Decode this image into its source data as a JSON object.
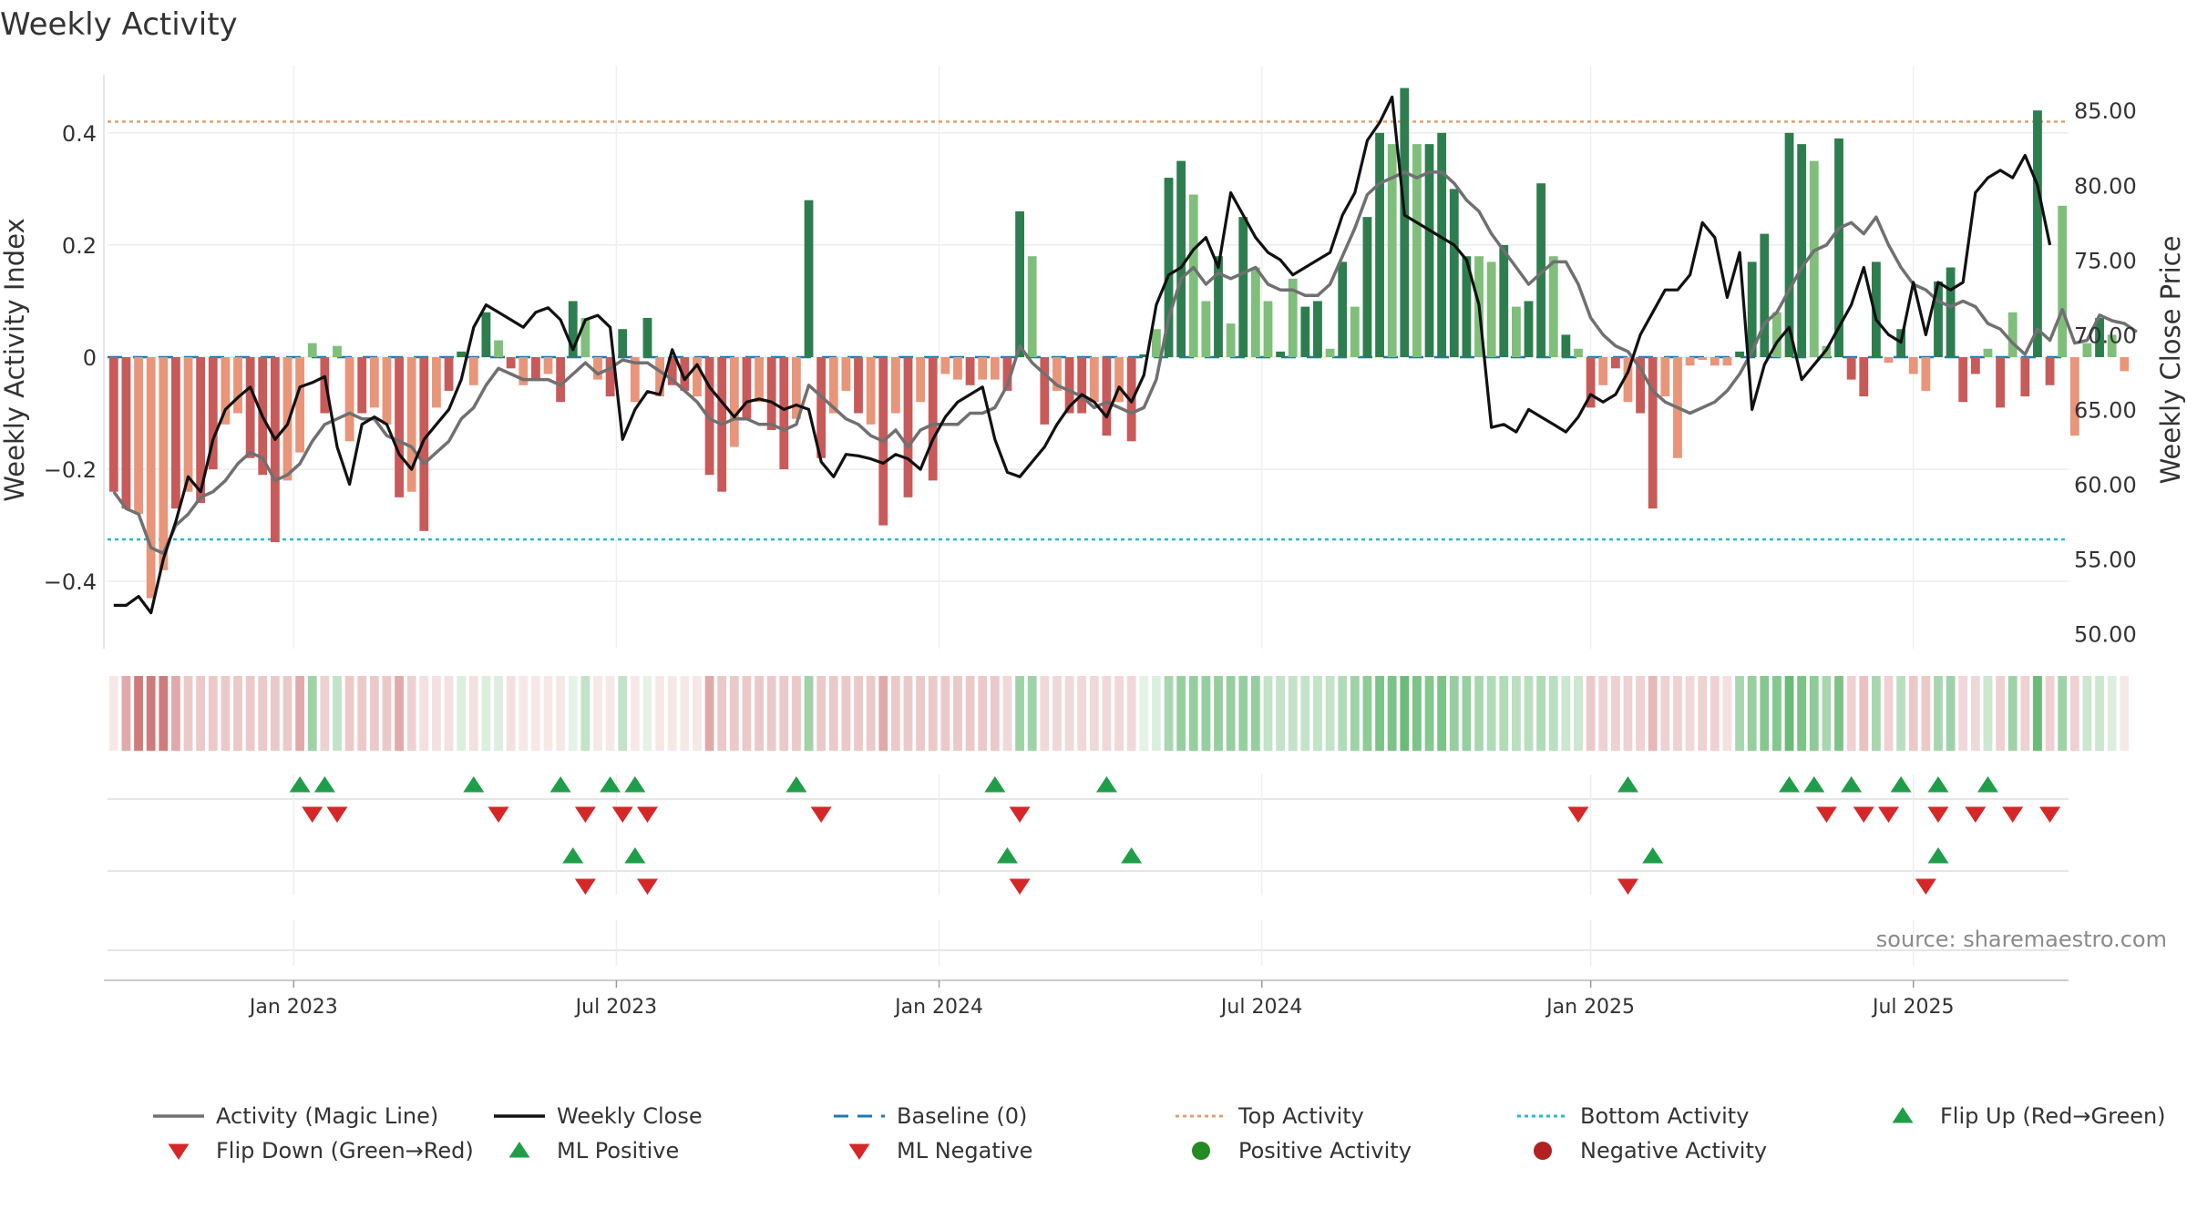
{
  "chart_data": {
    "type": "bar",
    "title": "Weekly Activity",
    "ylabel_left": "Weekly Activity Index",
    "ylabel_right": "Weekly Close Price",
    "source_text": "source: sharemaestro.com",
    "ylim_left": [
      -0.52,
      0.52
    ],
    "ylim_right": [
      49,
      88
    ],
    "yticks_left": [
      {
        "value": 0.4,
        "label": "0.4"
      },
      {
        "value": 0.2,
        "label": "0.2"
      },
      {
        "value": 0,
        "label": "0"
      },
      {
        "value": -0.2,
        "label": "−0.2"
      },
      {
        "value": -0.4,
        "label": "−0.4"
      }
    ],
    "yticks_right": [
      {
        "value": 85,
        "label": "85.00"
      },
      {
        "value": 80,
        "label": "80.00"
      },
      {
        "value": 75,
        "label": "75.00"
      },
      {
        "value": 70,
        "label": "70.00"
      },
      {
        "value": 65,
        "label": "65.00"
      },
      {
        "value": 60,
        "label": "60.00"
      },
      {
        "value": 55,
        "label": "55.00"
      },
      {
        "value": 50,
        "label": "50.00"
      }
    ],
    "x_week_range": [
      0,
      157
    ],
    "xticks": [
      {
        "week": 14.5,
        "label": "Jan 2023"
      },
      {
        "week": 40.5,
        "label": "Jul 2023"
      },
      {
        "week": 66.5,
        "label": "Jan 2024"
      },
      {
        "week": 92.5,
        "label": "Jul 2024"
      },
      {
        "week": 119,
        "label": "Jan 2025"
      },
      {
        "week": 145,
        "label": "Jul 2025"
      }
    ],
    "top_activity": 0.42,
    "bottom_activity": -0.325,
    "baseline": 0,
    "colors": {
      "positive_strong": "#2e7d4f",
      "positive_light": "#7fbf7b",
      "negative_strong": "#c85a5a",
      "negative_light": "#e8957a",
      "magic_line": "#707070",
      "weekly_close": "#111111",
      "baseline": "#1f77b4",
      "top_activity": "#e0a070",
      "bottom_activity": "#22bbcc",
      "marker_up": "#1f9e49",
      "marker_down": "#d62728",
      "positive_dot": "#238b23",
      "negative_dot": "#b22222"
    },
    "series": [
      {
        "name": "Activity",
        "values": [
          -0.24,
          -0.27,
          -0.28,
          -0.43,
          -0.38,
          -0.27,
          -0.24,
          -0.26,
          -0.2,
          -0.12,
          -0.1,
          -0.18,
          -0.21,
          -0.33,
          -0.22,
          -0.17,
          0.025,
          -0.1,
          0.02,
          -0.15,
          -0.1,
          -0.09,
          -0.12,
          -0.25,
          -0.24,
          -0.31,
          -0.09,
          -0.06,
          0.01,
          -0.05,
          0.08,
          0.03,
          -0.02,
          -0.05,
          -0.04,
          -0.03,
          -0.08,
          0.1,
          0.07,
          -0.04,
          -0.07,
          0.05,
          -0.08,
          0.07,
          -0.07,
          -0.05,
          -0.06,
          -0.07,
          -0.21,
          -0.24,
          -0.16,
          -0.11,
          -0.08,
          -0.13,
          -0.2,
          -0.11,
          0.28,
          -0.18,
          -0.1,
          -0.06,
          -0.1,
          -0.12,
          -0.3,
          -0.1,
          -0.25,
          -0.08,
          -0.22,
          -0.03,
          -0.04,
          -0.05,
          -0.04,
          -0.04,
          -0.06,
          0.26,
          0.18,
          -0.12,
          -0.06,
          -0.1,
          -0.1,
          -0.08,
          -0.14,
          -0.08,
          -0.15,
          0.005,
          0.05,
          0.32,
          0.35,
          0.29,
          0.1,
          0.18,
          0.06,
          0.25,
          0.16,
          0.1,
          0.01,
          0.14,
          0.09,
          0.1,
          0.015,
          0.17,
          0.09,
          0.25,
          0.4,
          0.38,
          0.48,
          0.38,
          0.38,
          0.4,
          0.3,
          0.18,
          0.18,
          0.17,
          0.2,
          0.09,
          0.1,
          0.31,
          0.18,
          0.04,
          0.015,
          -0.09,
          -0.05,
          -0.02,
          -0.08,
          -0.1,
          -0.27,
          -0.07,
          -0.18,
          -0.015,
          -0.005,
          -0.015,
          -0.015,
          0.01,
          0.17,
          0.22,
          0.08,
          0.4,
          0.38,
          0.35,
          0.02,
          0.39,
          -0.04,
          -0.07,
          0.17,
          -0.01,
          0.05,
          -0.03,
          -0.06,
          0.135,
          0.16,
          -0.08,
          -0.03,
          0.015,
          -0.09,
          0.08,
          -0.07,
          0.44,
          -0.05,
          0.27,
          -0.14,
          0.025,
          0.07,
          0.04,
          -0.025
        ],
        "shade": [
          1,
          1,
          0,
          0,
          0,
          1,
          0,
          1,
          1,
          0,
          0,
          1,
          1,
          1,
          0,
          0,
          0,
          1,
          0,
          0,
          1,
          0,
          0,
          1,
          0,
          1,
          0,
          1,
          1,
          0,
          1,
          0,
          1,
          0,
          1,
          0,
          1,
          1,
          0,
          0,
          1,
          1,
          0,
          1,
          0,
          1,
          1,
          0,
          1,
          1,
          0,
          1,
          0,
          1,
          1,
          0,
          1,
          1,
          0,
          0,
          1,
          0,
          1,
          0,
          1,
          0,
          1,
          0,
          0,
          1,
          0,
          0,
          1,
          1,
          0,
          1,
          0,
          1,
          1,
          0,
          1,
          0,
          1,
          1,
          0,
          1,
          1,
          0,
          0,
          1,
          0,
          1,
          0,
          0,
          1,
          0,
          1,
          1,
          0,
          1,
          0,
          1,
          1,
          0,
          1,
          0,
          1,
          1,
          1,
          1,
          0,
          0,
          1,
          0,
          1,
          1,
          0,
          1,
          0,
          1,
          0,
          1,
          0,
          1,
          1,
          0,
          0,
          0,
          0,
          0,
          0,
          1,
          1,
          1,
          0,
          1,
          1,
          0,
          0,
          1,
          1,
          1,
          1,
          0,
          1,
          0,
          0,
          1,
          1,
          1,
          1,
          0,
          1,
          0,
          1,
          1,
          1,
          0,
          0,
          0,
          1
        ]
      },
      {
        "name": "Activity (Magic Line)",
        "values": [
          -0.24,
          -0.27,
          -0.28,
          -0.34,
          -0.35,
          -0.3,
          -0.28,
          -0.25,
          -0.24,
          -0.22,
          -0.19,
          -0.17,
          -0.18,
          -0.22,
          -0.21,
          -0.19,
          -0.15,
          -0.12,
          -0.11,
          -0.1,
          -0.11,
          -0.11,
          -0.14,
          -0.15,
          -0.16,
          -0.19,
          -0.17,
          -0.15,
          -0.11,
          -0.09,
          -0.05,
          -0.02,
          -0.03,
          -0.04,
          -0.04,
          -0.04,
          -0.05,
          -0.03,
          -0.01,
          -0.03,
          -0.02,
          -0.005,
          -0.01,
          -0.01,
          -0.025,
          -0.04,
          -0.06,
          -0.08,
          -0.11,
          -0.12,
          -0.11,
          -0.11,
          -0.12,
          -0.12,
          -0.13,
          -0.12,
          -0.05,
          -0.07,
          -0.09,
          -0.11,
          -0.12,
          -0.14,
          -0.15,
          -0.13,
          -0.16,
          -0.13,
          -0.12,
          -0.12,
          -0.12,
          -0.1,
          -0.1,
          -0.09,
          -0.05,
          0.02,
          -0.01,
          -0.03,
          -0.05,
          -0.06,
          -0.07,
          -0.09,
          -0.08,
          -0.09,
          -0.1,
          -0.09,
          -0.04,
          0.07,
          0.14,
          0.16,
          0.13,
          0.15,
          0.14,
          0.15,
          0.16,
          0.13,
          0.12,
          0.12,
          0.11,
          0.11,
          0.13,
          0.18,
          0.23,
          0.29,
          0.31,
          0.32,
          0.33,
          0.32,
          0.33,
          0.33,
          0.31,
          0.28,
          0.26,
          0.22,
          0.19,
          0.16,
          0.13,
          0.15,
          0.17,
          0.17,
          0.13,
          0.07,
          0.04,
          0.02,
          0.01,
          -0.02,
          -0.06,
          -0.08,
          -0.09,
          -0.1,
          -0.09,
          -0.08,
          -0.06,
          -0.03,
          0.01,
          0.06,
          0.08,
          0.12,
          0.16,
          0.19,
          0.2,
          0.23,
          0.24,
          0.22,
          0.25,
          0.2,
          0.16,
          0.13,
          0.12,
          0.1,
          0.09,
          0.1,
          0.09,
          0.06,
          0.05,
          0.025,
          0.005,
          0.05,
          0.03,
          0.085,
          0.025,
          0.03,
          0.075,
          0.065,
          0.06,
          0.045
        ]
      },
      {
        "name": "Weekly Close",
        "values": [
          51.9,
          51.9,
          52.5,
          51.4,
          55.0,
          57.5,
          60.5,
          59.5,
          63.0,
          65.0,
          65.8,
          66.5,
          64.5,
          63.0,
          64.0,
          66.5,
          66.8,
          67.2,
          62.5,
          60.0,
          64.0,
          64.5,
          64.0,
          62.0,
          61.0,
          63.0,
          64.0,
          65.0,
          67.0,
          70.5,
          72.0,
          71.5,
          71.0,
          70.5,
          71.5,
          71.8,
          71.0,
          69.0,
          71.0,
          71.3,
          70.5,
          63.0,
          65.0,
          66.2,
          66.0,
          69.0,
          67.0,
          68.0,
          66.5,
          65.5,
          64.5,
          65.5,
          65.7,
          65.5,
          65.0,
          65.3,
          65.0,
          61.5,
          60.5,
          62.0,
          61.9,
          61.7,
          61.4,
          62.0,
          61.7,
          61.0,
          63.0,
          64.5,
          65.5,
          66.0,
          66.5,
          63.0,
          60.8,
          60.5,
          61.5,
          62.5,
          64.0,
          65.2,
          66.0,
          65.5,
          64.5,
          66.5,
          65.5,
          67.3,
          72.0,
          74.0,
          74.5,
          75.7,
          76.5,
          74.5,
          79.5,
          78.0,
          76.5,
          75.5,
          75.0,
          74.0,
          74.5,
          75.0,
          75.5,
          78.0,
          79.5,
          83.0,
          84.2,
          85.9,
          78.0,
          77.5,
          77.0,
          76.5,
          76.0,
          75.0,
          72.0,
          63.8,
          64.0,
          63.5,
          65.0,
          64.5,
          64.0,
          63.5,
          64.5,
          66.0,
          65.5,
          66.0,
          67.5,
          70.0,
          71.5,
          73.0,
          73.0,
          74.0,
          77.5,
          76.5,
          72.5,
          75.5,
          65.0,
          68.0,
          69.5,
          70.5,
          67.0,
          68.0,
          69.0,
          70.5,
          72.0,
          74.5,
          71.0,
          70.0,
          69.5,
          73.5,
          70.0,
          73.5,
          73.0,
          73.5,
          79.5,
          80.5,
          81.0,
          80.5,
          82.0,
          80.0,
          76.0
        ]
      }
    ],
    "bottom_panel": {
      "strip_intensity": [
        0.15,
        0.55,
        0.85,
        0.85,
        0.85,
        0.55,
        0.35,
        0.35,
        0.35,
        0.35,
        0.35,
        0.35,
        0.35,
        0.35,
        0.35,
        0.55,
        0.55,
        0.3,
        0.35,
        0.35,
        0.35,
        0.35,
        0.35,
        0.55,
        0.3,
        0.2,
        0.2,
        0.2,
        0.2,
        0.2,
        0.2,
        0.2,
        0.2,
        0.15,
        0.15,
        0.15,
        0.15,
        0.15,
        0.35,
        0.15,
        0.15,
        0.35,
        0.15,
        0.15,
        0.15,
        0.15,
        0.15,
        0.15,
        0.55,
        0.35,
        0.35,
        0.35,
        0.35,
        0.35,
        0.35,
        0.35,
        0.55,
        0.35,
        0.35,
        0.35,
        0.35,
        0.35,
        0.55,
        0.35,
        0.35,
        0.35,
        0.35,
        0.35,
        0.35,
        0.35,
        0.35,
        0.35,
        0.25,
        0.55,
        0.55,
        0.25,
        0.25,
        0.25,
        0.25,
        0.25,
        0.25,
        0.25,
        0.25,
        0.15,
        0.2,
        0.5,
        0.6,
        0.6,
        0.6,
        0.6,
        0.6,
        0.6,
        0.6,
        0.35,
        0.35,
        0.35,
        0.35,
        0.35,
        0.35,
        0.45,
        0.55,
        0.65,
        0.75,
        0.75,
        0.85,
        0.75,
        0.7,
        0.75,
        0.6,
        0.6,
        0.5,
        0.45,
        0.45,
        0.4,
        0.4,
        0.45,
        0.4,
        0.3,
        0.3,
        0.35,
        0.3,
        0.3,
        0.3,
        0.3,
        0.45,
        0.3,
        0.3,
        0.25,
        0.3,
        0.3,
        0.2,
        0.5,
        0.6,
        0.7,
        0.7,
        0.85,
        0.75,
        0.65,
        0.5,
        0.75,
        0.3,
        0.4,
        0.5,
        0.3,
        0.4,
        0.35,
        0.35,
        0.5,
        0.55,
        0.25,
        0.25,
        0.3,
        0.3,
        0.55,
        0.3,
        0.85,
        0.3,
        0.55,
        0.3,
        0.3,
        0.3,
        0.2,
        0.15
      ],
      "flip_up_weeks": [
        15,
        17,
        29,
        36,
        40,
        42,
        55,
        71,
        80,
        122,
        135,
        137,
        140,
        144,
        147,
        151
      ],
      "flip_down_weeks": [
        16,
        18,
        31,
        38,
        41,
        43,
        57,
        73,
        118,
        138,
        141,
        143,
        147,
        150,
        153,
        156
      ],
      "ml_positive_weeks": [
        37,
        42,
        72,
        82,
        124,
        147
      ],
      "ml_negative_weeks": [
        38,
        43,
        73,
        122,
        146
      ]
    },
    "legend": [
      {
        "label": "Activity (Magic Line)",
        "kind": "line",
        "color": "#707070"
      },
      {
        "label": "Weekly Close",
        "kind": "line",
        "color": "#111111"
      },
      {
        "label": "Baseline (0)",
        "kind": "dash",
        "color": "#1f77b4"
      },
      {
        "label": "Top Activity",
        "kind": "dot",
        "color": "#e0a070"
      },
      {
        "label": "Bottom Activity",
        "kind": "dot",
        "color": "#22bbcc"
      },
      {
        "label": "Flip Up (Red→Green)",
        "kind": "tri-up",
        "color": "#1f9e49"
      },
      {
        "label": "Flip Down (Green→Red)",
        "kind": "tri-down",
        "color": "#d62728"
      },
      {
        "label": "ML Positive",
        "kind": "tri-up",
        "color": "#1f9e49"
      },
      {
        "label": "ML Negative",
        "kind": "tri-down",
        "color": "#d62728"
      },
      {
        "label": "Positive Activity",
        "kind": "circle",
        "color": "#238b23"
      },
      {
        "label": "Negative Activity",
        "kind": "circle",
        "color": "#b22222"
      }
    ]
  }
}
